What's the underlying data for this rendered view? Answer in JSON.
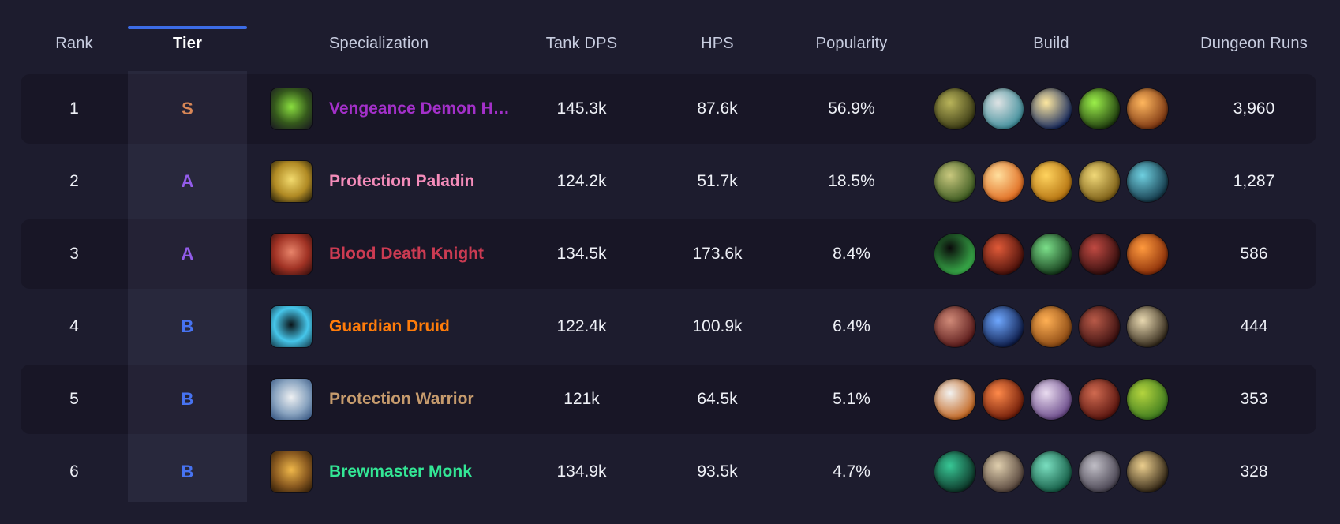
{
  "table": {
    "columns": [
      {
        "key": "rank",
        "label": "Rank"
      },
      {
        "key": "tier",
        "label": "Tier",
        "sorted": true
      },
      {
        "key": "spec",
        "label": "Specialization"
      },
      {
        "key": "tank_dps",
        "label": "Tank DPS"
      },
      {
        "key": "hps",
        "label": "HPS"
      },
      {
        "key": "popularity",
        "label": "Popularity"
      },
      {
        "key": "build",
        "label": "Build"
      },
      {
        "key": "dungeon_runs",
        "label": "Dungeon Runs"
      }
    ],
    "rows": [
      {
        "rank": "1",
        "tier": "S",
        "tier_color": "#d9824a",
        "spec": {
          "name": "Vengeance Demon H…",
          "color": "#a330c9",
          "icon": "vengeance-demon-hunter-icon",
          "icon_colors": [
            "#8adf3f",
            "#35591c",
            "#171321"
          ]
        },
        "tank_dps": "145.3k",
        "hps": "87.6k",
        "popularity": "56.9%",
        "build": [
          {
            "name": "skull-helm-icon",
            "colors": [
              "#b9b45a",
              "#3a3a14"
            ]
          },
          {
            "name": "bone-skull-icon",
            "colors": [
              "#dfe3e4",
              "#3f8e9b"
            ]
          },
          {
            "name": "starburst-icon",
            "colors": [
              "#ffe9a0",
              "#16295e"
            ]
          },
          {
            "name": "fel-skull-icon",
            "colors": [
              "#9cf04a",
              "#1d3a0d"
            ]
          },
          {
            "name": "fiery-swirl-icon",
            "colors": [
              "#ffb75e",
              "#7a3410"
            ]
          }
        ],
        "dungeon_runs": "3,960"
      },
      {
        "rank": "2",
        "tier": "A",
        "tier_color": "#8f54e8",
        "spec": {
          "name": "Protection Paladin",
          "color": "#f48cba",
          "icon": "protection-paladin-icon",
          "icon_colors": [
            "#f2da6e",
            "#b08a24",
            "#161206"
          ]
        },
        "tank_dps": "124.2k",
        "hps": "51.7k",
        "popularity": "18.5%",
        "build": [
          {
            "name": "lion-visage-icon",
            "colors": [
              "#c9c87e",
              "#3c5a20"
            ]
          },
          {
            "name": "flame-pillar-icon",
            "colors": [
              "#ffdf9e",
              "#e06a1e"
            ]
          },
          {
            "name": "golden-wrath-icon",
            "colors": [
              "#ffd35e",
              "#b4720f"
            ]
          },
          {
            "name": "gold-shield-icon",
            "colors": [
              "#f0d878",
              "#7a5c14"
            ]
          },
          {
            "name": "teal-relic-icon",
            "colors": [
              "#6fd0e0",
              "#14394a"
            ]
          }
        ],
        "dungeon_runs": "1,287"
      },
      {
        "rank": "3",
        "tier": "A",
        "tier_color": "#8f54e8",
        "spec": {
          "name": "Blood Death Knight",
          "color": "#cb3b52",
          "icon": "blood-death-knight-icon",
          "icon_colors": [
            "#e8846a",
            "#a03224",
            "#2a0a0a"
          ]
        },
        "tank_dps": "134.5k",
        "hps": "173.6k",
        "popularity": "8.4%",
        "build": [
          {
            "name": "green-ring-icon",
            "colors": [
              "#0a0a0a",
              "#3cb84e"
            ]
          },
          {
            "name": "demon-skull-icon",
            "colors": [
              "#e05a38",
              "#4a100a"
            ]
          },
          {
            "name": "ghoul-face-icon",
            "colors": [
              "#7ce08a",
              "#143a1a"
            ]
          },
          {
            "name": "crimson-claw-icon",
            "colors": [
              "#c04a42",
              "#330d0d"
            ]
          },
          {
            "name": "molten-heart-icon",
            "colors": [
              "#ff9a3e",
              "#8a2e08"
            ]
          }
        ],
        "dungeon_runs": "586"
      },
      {
        "rank": "4",
        "tier": "B",
        "tier_color": "#3e6df0",
        "spec": {
          "name": "Guardian Druid",
          "color": "#ff7c0a",
          "icon": "guardian-druid-icon",
          "icon_colors": [
            "#0a1418",
            "#46c6ea",
            "#10303e"
          ]
        },
        "tank_dps": "122.4k",
        "hps": "100.9k",
        "popularity": "6.4%",
        "build": [
          {
            "name": "bloody-maw-icon",
            "colors": [
              "#d08a78",
              "#5a1a1a"
            ]
          },
          {
            "name": "lightning-figure-icon",
            "colors": [
              "#6fa8ff",
              "#0d1c4a"
            ]
          },
          {
            "name": "armored-bear-icon",
            "colors": [
              "#ffb054",
              "#8a4812"
            ]
          },
          {
            "name": "dire-wolf-icon",
            "colors": [
              "#b85a48",
              "#3a0f0f"
            ]
          },
          {
            "name": "bone-claws-icon",
            "colors": [
              "#e8d8b0",
              "#32281a"
            ]
          }
        ],
        "dungeon_runs": "444"
      },
      {
        "rank": "5",
        "tier": "B",
        "tier_color": "#3e6df0",
        "spec": {
          "name": "Protection Warrior",
          "color": "#c69b6d",
          "icon": "protection-warrior-icon",
          "icon_colors": [
            "#eef0f2",
            "#8aa4c0",
            "#2a4a78"
          ]
        },
        "tank_dps": "121k",
        "hps": "64.5k",
        "popularity": "5.1%",
        "build": [
          {
            "name": "silver-shield-icon",
            "colors": [
              "#f2f2f0",
              "#c2641e"
            ]
          },
          {
            "name": "burning-charge-icon",
            "colors": [
              "#ff8a4a",
              "#701c08"
            ]
          },
          {
            "name": "anguished-face-icon",
            "colors": [
              "#eadcf0",
              "#6a4a8a"
            ]
          },
          {
            "name": "crimson-torso-icon",
            "colors": [
              "#d06a50",
              "#58140e"
            ]
          },
          {
            "name": "green-visage-icon",
            "colors": [
              "#b4d43e",
              "#3c7a1e"
            ]
          }
        ],
        "dungeon_runs": "353"
      },
      {
        "rank": "6",
        "tier": "B",
        "tier_color": "#3e6df0",
        "spec": {
          "name": "Brewmaster Monk",
          "color": "#33e695",
          "icon": "brewmaster-monk-icon",
          "icon_colors": [
            "#f0b84a",
            "#8a5a20",
            "#241404"
          ]
        },
        "tank_dps": "134.9k",
        "hps": "93.5k",
        "popularity": "4.7%",
        "build": [
          {
            "name": "jade-vortex-icon",
            "colors": [
              "#38c896",
              "#0c3326"
            ]
          },
          {
            "name": "staff-figure-icon",
            "colors": [
              "#e0cfae",
              "#54433a"
            ]
          },
          {
            "name": "jade-fist-icon",
            "colors": [
              "#7adfc0",
              "#135a44"
            ]
          },
          {
            "name": "keg-medallion-icon",
            "colors": [
              "#c0bec6",
              "#474250"
            ]
          },
          {
            "name": "golden-ox-icon",
            "colors": [
              "#eccf8e",
              "#302414"
            ]
          }
        ],
        "dungeon_runs": "328"
      }
    ]
  },
  "colors": {
    "page_bg": "#1d1c2e",
    "row_band": "#181626",
    "tier_highlight": "rgba(198,204,255,0.07)",
    "accent_sort": "#3c6ce6",
    "header_text": "#c8cde0",
    "cell_text": "#eef0f6"
  }
}
